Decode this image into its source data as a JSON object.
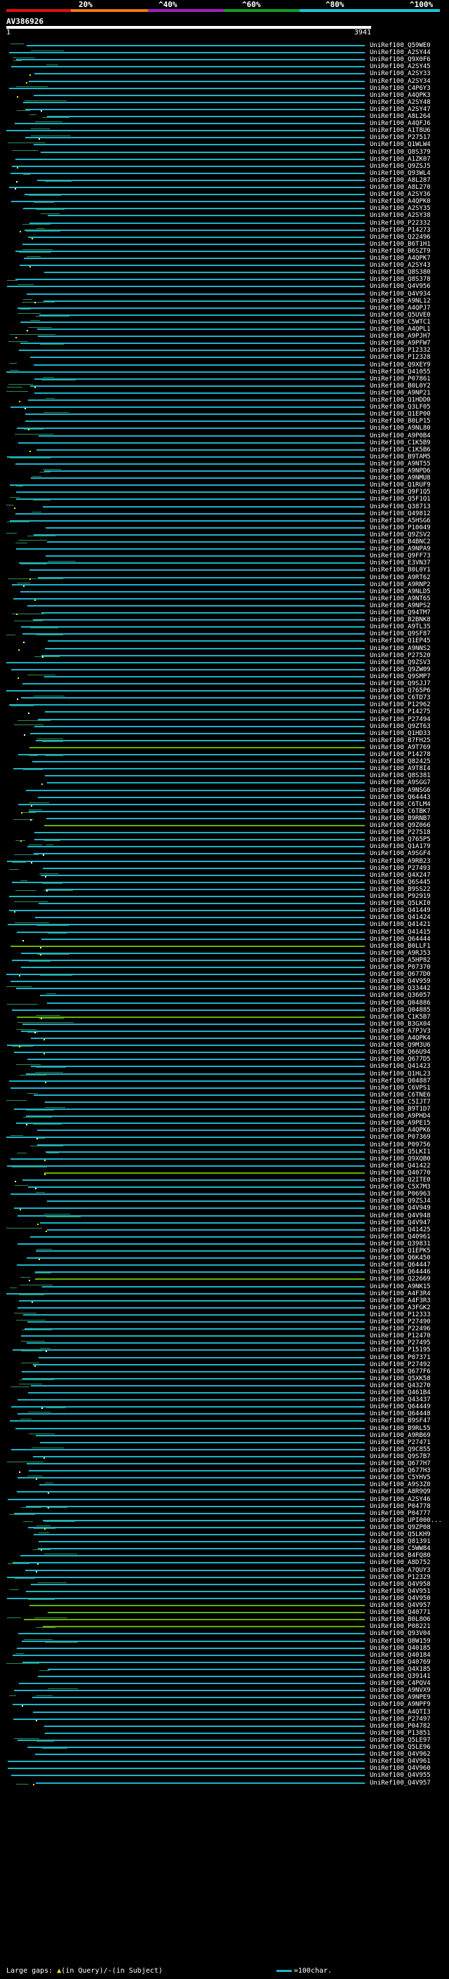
{
  "scale": {
    "labels": [
      "20%",
      "^40%",
      "^60%",
      "^80%",
      "^100%"
    ],
    "colors": [
      "#e01010",
      "#f07818",
      "#a020c0",
      "#10a020",
      "#18c8d8"
    ]
  },
  "query": {
    "id": "AV386926",
    "start": "1",
    "end": "3941"
  },
  "colors": {
    "hit": "#1bb5c8",
    "hit_alt": "#2e8b57",
    "hit_green": "#64b400",
    "gap_query": "#f0f000",
    "gap_subject": "#ffffff"
  },
  "hits": [
    "UniRef100_Q59WE0",
    "UniRef100_A2SY44",
    "UniRef100_Q9X0F6",
    "UniRef100_A2SY45",
    "UniRef100_A2SY33",
    "UniRef100_A2SY34",
    "UniRef100_C4P6Y3",
    "UniRef100_A4QPK3",
    "UniRef100_A2SY48",
    "UniRef100_A2SY47",
    "UniRef100_A8L264",
    "UniRef100_A4QFJ6",
    "UniRef100_A1T8U6",
    "UniRef100_P27517",
    "UniRef100_Q1WLW4",
    "UniRef100_Q8S379",
    "UniRef100_A1ZK07",
    "UniRef100_Q9ZSJ5",
    "UniRef100_Q93WL4",
    "UniRef100_A8L287",
    "UniRef100_A8L270",
    "UniRef100_A2SY36",
    "UniRef100_A4QPK0",
    "UniRef100_A2SY35",
    "UniRef100_A2SY38",
    "UniRef100_P22332",
    "UniRef100_P14273",
    "UniRef100_Q22496",
    "UniRef100_B6T1H1",
    "UniRef100_B6SZT9",
    "UniRef100_A4QPK7",
    "UniRef100_A2SY43",
    "UniRef100_Q8S380",
    "UniRef100_Q8S378",
    "UniRef100_Q4V956",
    "UniRef100_Q4V934",
    "UniRef100_A9NL12",
    "UniRef100_A4QPJ7",
    "UniRef100_Q5UVE0",
    "UniRef100_C5WTC1",
    "UniRef100_A4QPL1",
    "UniRef100_A9PJH7",
    "UniRef100_A9PFW7",
    "UniRef100_P12332",
    "UniRef100_P12328",
    "UniRef100_Q9XEY9",
    "UniRef100_Q41055",
    "UniRef100_P07861",
    "UniRef100_B0L0Y2",
    "UniRef100_A9NP21",
    "UniRef100_Q1HDD0",
    "UniRef100_Q3LF05",
    "UniRef100_Q1EP00",
    "UniRef100_B0LP15",
    "UniRef100_A9NL80",
    "UniRef100_A9P0B4",
    "UniRef100_C1K5B9",
    "UniRef100_C1K5B6",
    "UniRef100_B9TAM5",
    "UniRef100_A9NT55",
    "UniRef100_A9NPD6",
    "UniRef100_A9NMU8",
    "UniRef100_Q1RUF9",
    "UniRef100_Q9F1Q5",
    "UniRef100_Q5F1Q1",
    "UniRef100_Q38713",
    "UniRef100_Q49812",
    "UniRef100_A5HSG6",
    "UniRef100_P10049",
    "UniRef100_Q9ZSV2",
    "UniRef100_B4BNC2",
    "UniRef100_A9NPA9",
    "UniRef100_Q9FF73",
    "UniRef100_E3VN37",
    "UniRef100_B0L0Y1",
    "UniRef100_A9RT62",
    "UniRef100_A9RNP2",
    "UniRef100_A9NLD5",
    "UniRef100_A9NT65",
    "UniRef100_A9NPS2",
    "UniRef100_Q94TM7",
    "UniRef100_B2BNK8",
    "UniRef100_A9TL35",
    "UniRef100_Q9SF87",
    "UniRef100_Q1EP45",
    "UniRef100_A9NNS2",
    "UniRef100_P27520",
    "UniRef100_Q9ZSV3",
    "UniRef100_Q9ZW09",
    "UniRef100_Q9SMP7",
    "UniRef100_Q9SJJ7",
    "UniRef100_Q765P6",
    "UniRef100_C6TD73",
    "UniRef100_P12962",
    "UniRef100_P14275",
    "UniRef100_P27494",
    "UniRef100_Q9ZT63",
    "UniRef100_Q1HD33",
    "UniRef100_B7FH25",
    "UniRef100_A9T769",
    "UniRef100_P14278",
    "UniRef100_Q82425",
    "UniRef100_A9T8I4",
    "UniRef100_Q8S381",
    "UniRef100_A9SGG7",
    "UniRef100_A9NSG6",
    "UniRef100_Q64443",
    "UniRef100_C6TLM4",
    "UniRef100_C6TBK7",
    "UniRef100_B9RNB7",
    "UniRef100_Q9Z066",
    "UniRef100_P27518",
    "UniRef100_Q765P5",
    "UniRef100_Q1A179",
    "UniRef100_A9SGF4",
    "UniRef100_A9RB23",
    "UniRef100_P27493",
    "UniRef100_Q4X247",
    "UniRef100_Q6S445",
    "UniRef100_B9SS22",
    "UniRef100_P92919",
    "UniRef100_Q5LKI0",
    "UniRef100_Q41449",
    "UniRef100_Q41424",
    "UniRef100_Q41421",
    "UniRef100_Q41415",
    "UniRef100_Q64444",
    "UniRef100_B0LLF1",
    "UniRef100_A9RJ53",
    "UniRef100_A5HP82",
    "UniRef100_P07370",
    "UniRef100_Q677D0",
    "UniRef100_Q4V959",
    "UniRef100_Q33442",
    "UniRef100_Q36057",
    "UniRef100_Q04886",
    "UniRef100_Q04885",
    "UniRef100_C1K5B7",
    "UniRef100_B3GX04",
    "UniRef100_A7PJV3",
    "UniRef100_A4QPK4",
    "UniRef100_Q9M3U6",
    "UniRef100_Q66U94",
    "UniRef100_Q677D5",
    "UniRef100_Q41423",
    "UniRef100_Q1HL23",
    "UniRef100_Q04887",
    "UniRef100_C6VPS1",
    "UniRef100_C6TNE6",
    "UniRef100_C5IJT7",
    "UniRef100_B9T1D7",
    "UniRef100_A9PHD4",
    "UniRef100_A9PE15",
    "UniRef100_A4QPK6",
    "UniRef100_P07369",
    "UniRef100_P09756",
    "UniRef100_Q5LKI1",
    "UniRef100_Q9XQB0",
    "UniRef100_Q41422",
    "UniRef100_Q40770",
    "UniRef100_Q2ITE0",
    "UniRef100_C5X7M3",
    "UniRef100_P06963",
    "UniRef100_Q9ZSJ4",
    "UniRef100_Q4V949",
    "UniRef100_Q4V948",
    "UniRef100_Q4V947",
    "UniRef100_Q41425",
    "UniRef100_Q40961",
    "UniRef100_Q39831",
    "UniRef100_Q1EPK5",
    "UniRef100_Q6K450",
    "UniRef100_Q64447",
    "UniRef100_Q64446",
    "UniRef100_Q22669",
    "UniRef100_A9NK15",
    "UniRef100_A4F3R4",
    "UniRef100_A4F3R3",
    "UniRef100_A3FGK2",
    "UniRef100_P12333",
    "UniRef100_P27490",
    "UniRef100_P22496",
    "UniRef100_P12470",
    "UniRef100_P27495",
    "UniRef100_P15195",
    "UniRef100_P07371",
    "UniRef100_P27492",
    "UniRef100_Q677F6",
    "UniRef100_Q5XK58",
    "UniRef100_Q43270",
    "UniRef100_Q461B4",
    "UniRef100_Q43437",
    "UniRef100_Q64449",
    "UniRef100_Q64448",
    "UniRef100_B9SF47",
    "UniRef100_B9RL55",
    "UniRef100_A9RB69",
    "UniRef100_P27471",
    "UniRef100_Q9C855",
    "UniRef100_Q9S7B7",
    "UniRef100_Q677H7",
    "UniRef100_Q677H3",
    "UniRef100_C5YHV5",
    "UniRef100_A9S3Z0",
    "UniRef100_A8R9Q9",
    "UniRef100_A2SY46",
    "UniRef100_P04778",
    "UniRef100_P04777",
    "UniRef100_UPI000...",
    "UniRef100_Q9ZP08",
    "UniRef100_Q5LKH9",
    "UniRef100_Q81391",
    "UniRef100_C5WW84",
    "UniRef100_B4FQ80",
    "UniRef100_A8D752",
    "UniRef100_A7QUY3",
    "UniRef100_P12329",
    "UniRef100_Q4V958",
    "UniRef100_Q4V951",
    "UniRef100_Q4V950",
    "UniRef100_Q4V957",
    "UniRef100_Q40771",
    "UniRef100_B0L8O6",
    "UniRef100_P08221",
    "UniRef100_Q93V04",
    "UniRef100_Q8W159",
    "UniRef100_Q40185",
    "UniRef100_Q40184",
    "UniRef100_Q40769",
    "UniRef100_Q4X185",
    "UniRef100_Q39141",
    "UniRef100_C4PQV4",
    "UniRef100_A9NVX9",
    "UniRef100_A9NPE9",
    "UniRef100_A9NPF9",
    "UniRef100_A4QTI3",
    "UniRef100_P27497",
    "UniRef100_P04782",
    "UniRef100_P13851",
    "UniRef100_Q5LE97",
    "UniRef100_Q5LE96",
    "UniRef100_Q4V962",
    "UniRef100_Q4V961",
    "UniRef100_Q4V960",
    "UniRef100_Q4V955",
    "UniRef100_Q4V957"
  ],
  "footer": {
    "text_before": "Large gaps: ",
    "query_marker": "▲",
    "text_query": "(in Query)/",
    "subject_marker": "-",
    "text_subject": "(in Subject)",
    "key_text": "=100char."
  }
}
